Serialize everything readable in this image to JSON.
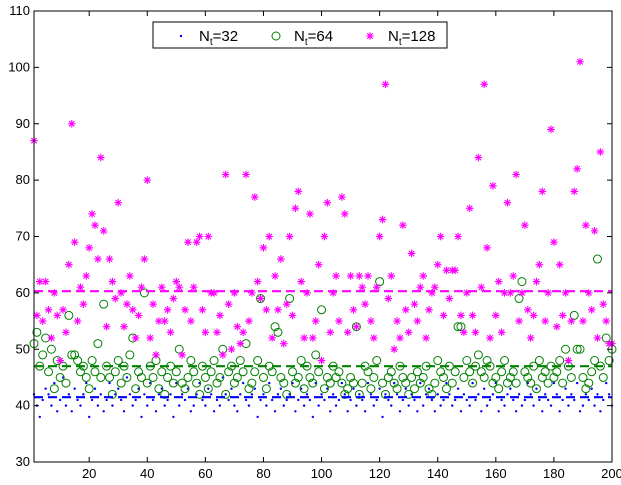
{
  "chart_data": {
    "type": "scatter",
    "title": "",
    "xlabel": "",
    "ylabel": "",
    "xlim": [
      1,
      200
    ],
    "ylim": [
      30,
      110
    ],
    "xticks": [
      20,
      40,
      60,
      80,
      100,
      120,
      140,
      160,
      180,
      200
    ],
    "yticks": [
      30,
      40,
      50,
      60,
      70,
      80,
      90,
      100,
      110
    ],
    "grid": false,
    "legend_position": "top-center",
    "series": [
      {
        "name": "N_t=32",
        "legend_main": "N",
        "legend_sub": "t",
        "legend_rest": "=32",
        "marker": "dot",
        "color": "#0000ff",
        "mean": 41.5,
        "x": [
          1,
          2,
          3,
          4,
          5,
          6,
          7,
          8,
          9,
          10,
          11,
          12,
          13,
          14,
          15,
          16,
          17,
          18,
          19,
          20,
          21,
          22,
          23,
          24,
          25,
          26,
          27,
          28,
          29,
          30,
          31,
          32,
          33,
          34,
          35,
          36,
          37,
          38,
          39,
          40,
          41,
          42,
          43,
          44,
          45,
          46,
          47,
          48,
          49,
          50,
          51,
          52,
          53,
          54,
          55,
          56,
          57,
          58,
          59,
          60,
          61,
          62,
          63,
          64,
          65,
          66,
          67,
          68,
          69,
          70,
          71,
          72,
          73,
          74,
          75,
          76,
          77,
          78,
          79,
          80,
          81,
          82,
          83,
          84,
          85,
          86,
          87,
          88,
          89,
          90,
          91,
          92,
          93,
          94,
          95,
          96,
          97,
          98,
          99,
          100,
          101,
          102,
          103,
          104,
          105,
          106,
          107,
          108,
          109,
          110,
          111,
          112,
          113,
          114,
          115,
          116,
          117,
          118,
          119,
          120,
          121,
          122,
          123,
          124,
          125,
          126,
          127,
          128,
          129,
          130,
          131,
          132,
          133,
          134,
          135,
          136,
          137,
          138,
          139,
          140,
          141,
          142,
          143,
          144,
          145,
          146,
          147,
          148,
          149,
          150,
          151,
          152,
          153,
          154,
          155,
          156,
          157,
          158,
          159,
          160,
          161,
          162,
          163,
          164,
          165,
          166,
          167,
          168,
          169,
          170,
          171,
          172,
          173,
          174,
          175,
          176,
          177,
          178,
          179,
          180,
          181,
          182,
          183,
          184,
          185,
          186,
          187,
          188,
          189,
          190,
          191,
          192,
          193,
          194,
          195,
          196,
          197,
          198,
          199,
          200
        ],
        "y": [
          42,
          40,
          38,
          41,
          43,
          42,
          40,
          44,
          39,
          41,
          45,
          40,
          42,
          39,
          43,
          41,
          40,
          42,
          44,
          38,
          41,
          43,
          40,
          42,
          39,
          41,
          44,
          40,
          42,
          43,
          41,
          39,
          45,
          42,
          40,
          41,
          43,
          38,
          42,
          40,
          44,
          41,
          39,
          42,
          43,
          40,
          41,
          42,
          38,
          44,
          40,
          42,
          41,
          43,
          39,
          40,
          42,
          44,
          41,
          40,
          43,
          42,
          39,
          41,
          40,
          45,
          42,
          41,
          43,
          40,
          39,
          42,
          44,
          41,
          40,
          42,
          43,
          38,
          41,
          42,
          40,
          44,
          41,
          39,
          42,
          43,
          40,
          41,
          42,
          44,
          39,
          41,
          43,
          40,
          42,
          41,
          38,
          44,
          40,
          42,
          41,
          43,
          39,
          42,
          40,
          41,
          44,
          42,
          39,
          41,
          43,
          40,
          42,
          41,
          39,
          44,
          42,
          40,
          41,
          43,
          38,
          42,
          41,
          40,
          44,
          42,
          39,
          41,
          43,
          40,
          42,
          41,
          39,
          44,
          40,
          42,
          43,
          41,
          39,
          42,
          40,
          41,
          44,
          42,
          40,
          41,
          43,
          39,
          42,
          41,
          40,
          44,
          41,
          42,
          39,
          43,
          40,
          41,
          42,
          44,
          39,
          41,
          40,
          42,
          43,
          41,
          39,
          42,
          40,
          41,
          44,
          42,
          40,
          43,
          41,
          39,
          42,
          41,
          40,
          44,
          42,
          39,
          41,
          43,
          40,
          42,
          41,
          44,
          39,
          40,
          42,
          41,
          43,
          40,
          42,
          39,
          41,
          44,
          42,
          40
        ]
      },
      {
        "name": "N_t=64",
        "legend_main": "N",
        "legend_sub": "t",
        "legend_rest": "=64",
        "marker": "circle",
        "color": "#008000",
        "mean": 47,
        "x": [
          1,
          2,
          3,
          4,
          5,
          6,
          7,
          8,
          9,
          10,
          11,
          12,
          13,
          14,
          15,
          16,
          17,
          18,
          19,
          20,
          21,
          22,
          23,
          24,
          25,
          26,
          27,
          28,
          29,
          30,
          31,
          32,
          33,
          34,
          35,
          36,
          37,
          38,
          39,
          40,
          41,
          42,
          43,
          44,
          45,
          46,
          47,
          48,
          49,
          50,
          51,
          52,
          53,
          54,
          55,
          56,
          57,
          58,
          59,
          60,
          61,
          62,
          63,
          64,
          65,
          66,
          67,
          68,
          69,
          70,
          71,
          72,
          73,
          74,
          75,
          76,
          77,
          78,
          79,
          80,
          81,
          82,
          83,
          84,
          85,
          86,
          87,
          88,
          89,
          90,
          91,
          92,
          93,
          94,
          95,
          96,
          97,
          98,
          99,
          100,
          101,
          102,
          103,
          104,
          105,
          106,
          107,
          108,
          109,
          110,
          111,
          112,
          113,
          114,
          115,
          116,
          117,
          118,
          119,
          120,
          121,
          122,
          123,
          124,
          125,
          126,
          127,
          128,
          129,
          130,
          131,
          132,
          133,
          134,
          135,
          136,
          137,
          138,
          139,
          140,
          141,
          142,
          143,
          144,
          145,
          146,
          147,
          148,
          149,
          150,
          151,
          152,
          153,
          154,
          155,
          156,
          157,
          158,
          159,
          160,
          161,
          162,
          163,
          164,
          165,
          166,
          167,
          168,
          169,
          170,
          171,
          172,
          173,
          174,
          175,
          176,
          177,
          178,
          179,
          180,
          181,
          182,
          183,
          184,
          185,
          186,
          187,
          188,
          189,
          190,
          191,
          192,
          193,
          194,
          195,
          196,
          197,
          198,
          199,
          200
        ],
        "y": [
          51,
          53,
          47,
          49,
          52,
          46,
          50,
          43,
          48,
          45,
          47,
          44,
          56,
          49,
          49,
          48,
          46,
          47,
          45,
          43,
          48,
          46,
          51,
          45,
          58,
          47,
          45,
          42,
          46,
          48,
          44,
          47,
          45,
          49,
          52,
          43,
          46,
          45,
          60,
          44,
          47,
          45,
          48,
          43,
          46,
          42,
          45,
          47,
          44,
          46,
          50,
          44,
          43,
          45,
          48,
          46,
          44,
          42,
          47,
          45,
          43,
          46,
          48,
          44,
          45,
          50,
          42,
          46,
          47,
          44,
          45,
          48,
          46,
          51,
          43,
          44,
          46,
          48,
          59,
          45,
          43,
          47,
          46,
          54,
          53,
          45,
          44,
          42,
          59,
          46,
          44,
          45,
          48,
          43,
          47,
          45,
          44,
          49,
          46,
          57,
          43,
          45,
          44,
          47,
          45,
          46,
          44,
          42,
          43,
          45,
          44,
          54,
          42,
          44,
          47,
          46,
          43,
          45,
          48,
          62,
          44,
          42,
          45,
          46,
          44,
          43,
          47,
          45,
          44,
          42,
          45,
          43,
          46,
          44,
          45,
          47,
          43,
          42,
          44,
          48,
          46,
          45,
          43,
          47,
          44,
          46,
          54,
          54,
          45,
          48,
          46,
          44,
          47,
          49,
          46,
          45,
          48,
          47,
          44,
          45,
          43,
          46,
          48,
          44,
          45,
          46,
          44,
          59,
          62,
          46,
          45,
          44,
          47,
          43,
          48,
          45,
          46,
          44,
          47,
          45,
          46,
          48,
          44,
          50,
          47,
          45,
          56,
          50,
          50,
          45,
          43,
          44,
          46,
          48,
          66,
          47,
          45,
          52,
          48,
          50
        ]
      },
      {
        "name": "N_t=128",
        "legend_main": "N",
        "legend_sub": "t",
        "legend_rest": "=128",
        "marker": "asterisk",
        "color": "#ff00ff",
        "mean": 60.3,
        "x": [
          1,
          2,
          3,
          4,
          5,
          6,
          7,
          8,
          9,
          10,
          11,
          12,
          13,
          14,
          15,
          16,
          17,
          18,
          19,
          20,
          21,
          22,
          23,
          24,
          25,
          26,
          27,
          28,
          29,
          30,
          31,
          32,
          33,
          34,
          35,
          36,
          37,
          38,
          39,
          40,
          41,
          42,
          43,
          44,
          45,
          46,
          47,
          48,
          49,
          50,
          51,
          52,
          53,
          54,
          55,
          56,
          57,
          58,
          59,
          60,
          61,
          62,
          63,
          64,
          65,
          66,
          67,
          68,
          69,
          70,
          71,
          72,
          73,
          74,
          75,
          76,
          77,
          78,
          79,
          80,
          81,
          82,
          83,
          84,
          85,
          86,
          87,
          88,
          89,
          90,
          91,
          92,
          93,
          94,
          95,
          96,
          97,
          98,
          99,
          100,
          101,
          102,
          103,
          104,
          105,
          106,
          107,
          108,
          109,
          110,
          111,
          112,
          113,
          114,
          115,
          116,
          117,
          118,
          119,
          120,
          121,
          122,
          123,
          124,
          125,
          126,
          127,
          128,
          129,
          130,
          131,
          132,
          133,
          134,
          135,
          136,
          137,
          138,
          139,
          140,
          141,
          142,
          143,
          144,
          145,
          146,
          147,
          148,
          149,
          150,
          151,
          152,
          153,
          154,
          155,
          156,
          157,
          158,
          159,
          160,
          161,
          162,
          163,
          164,
          165,
          166,
          167,
          168,
          169,
          170,
          171,
          172,
          173,
          174,
          175,
          176,
          177,
          178,
          179,
          180,
          181,
          182,
          183,
          184,
          185,
          186,
          187,
          188,
          189,
          190,
          191,
          192,
          193,
          194,
          195,
          196,
          197,
          198,
          199,
          200
        ],
        "y": [
          87,
          56,
          62,
          55,
          62,
          57,
          52,
          60,
          56,
          48,
          57,
          53,
          65,
          90,
          69,
          55,
          61,
          58,
          63,
          68,
          74,
          72,
          66,
          84,
          71,
          54,
          66,
          62,
          59,
          76,
          60,
          54,
          58,
          63,
          57,
          52,
          56,
          61,
          66,
          80,
          52,
          58,
          49,
          55,
          61,
          55,
          57,
          53,
          59,
          62,
          61,
          49,
          57,
          69,
          55,
          61,
          69,
          70,
          57,
          53,
          70,
          60,
          60,
          53,
          56,
          49,
          81,
          58,
          50,
          60,
          54,
          51,
          53,
          81,
          55,
          60,
          77,
          62,
          59,
          68,
          57,
          70,
          52,
          63,
          57,
          66,
          51,
          58,
          70,
          56,
          75,
          78,
          62,
          52,
          60,
          74,
          52,
          55,
          65,
          48,
          70,
          76,
          53,
          60,
          63,
          55,
          77,
          74,
          53,
          63,
          57,
          54,
          63,
          61,
          58,
          63,
          55,
          52,
          61,
          70,
          73,
          97,
          59,
          63,
          50,
          55,
          52,
          72,
          57,
          53,
          67,
          58,
          55,
          61,
          63,
          52,
          57,
          60,
          61,
          65,
          70,
          56,
          64,
          59,
          64,
          64,
          70,
          56,
          53,
          60,
          75,
          56,
          53,
          84,
          61,
          97,
          68,
          52,
          79,
          56,
          62,
          53,
          60,
          76,
          60,
          63,
          81,
          55,
          60,
          72,
          57,
          52,
          56,
          62,
          65,
          78,
          55,
          60,
          89,
          69,
          54,
          65,
          56,
          60,
          48,
          55,
          78,
          82,
          101,
          55,
          72,
          60,
          57,
          71,
          52,
          85,
          58,
          55,
          51,
          51
        ]
      }
    ]
  }
}
